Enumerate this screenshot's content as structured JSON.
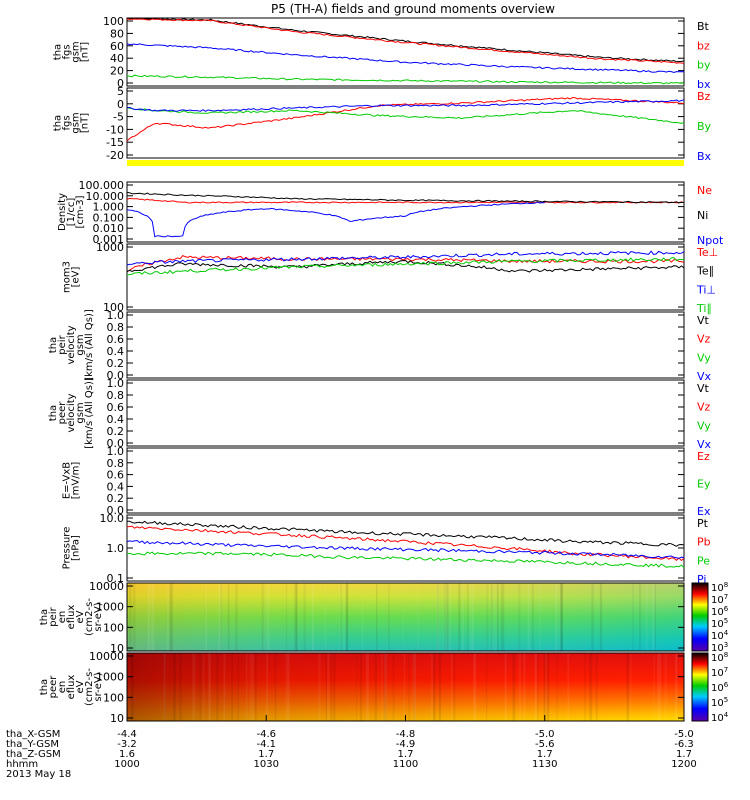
{
  "title": "P5 (TH-A) fields and ground moments overview",
  "chart_data": [
    {
      "type": "line",
      "ylabel": [
        "tha",
        "fgs",
        "gsm",
        "[nT]"
      ],
      "yticks": [
        "100",
        "80",
        "60",
        "40",
        "20",
        "0"
      ],
      "ylim": [
        0,
        100
      ],
      "series": [
        {
          "name": "Bt",
          "color": "#000000",
          "x": [
            0,
            0.15,
            0.3,
            0.5,
            0.7,
            0.85,
            1
          ],
          "values": [
            100,
            97,
            82,
            66,
            52,
            42,
            36
          ]
        },
        {
          "name": "bz",
          "color": "#ff0000",
          "x": [
            0,
            0.15,
            0.3,
            0.5,
            0.7,
            0.85,
            1
          ],
          "values": [
            99,
            96,
            80,
            64,
            50,
            40,
            34
          ]
        },
        {
          "name": "by",
          "color": "#00cc00",
          "x": [
            0,
            0.15,
            0.3,
            0.5,
            0.7,
            0.85,
            1
          ],
          "values": [
            15,
            13,
            10,
            8,
            6,
            5,
            4
          ]
        },
        {
          "name": "bx",
          "color": "#0000ff",
          "x": [
            0,
            0.15,
            0.3,
            0.5,
            0.7,
            0.85,
            1
          ],
          "values": [
            62,
            56,
            46,
            35,
            28,
            24,
            20
          ]
        }
      ]
    },
    {
      "type": "line",
      "ylabel": [
        "tha",
        "fgs",
        "gsm",
        "[nT]"
      ],
      "yticks": [
        "5",
        "0",
        "-5",
        "-10",
        "-15",
        "-20"
      ],
      "ylim": [
        -22,
        6
      ],
      "series": [
        {
          "name": "Bz",
          "color": "#ff0000",
          "x": [
            0,
            0.05,
            0.15,
            0.3,
            0.45,
            0.6,
            0.8,
            1
          ],
          "values": [
            -15,
            -8,
            -10,
            -6,
            -1,
            0,
            2,
            0
          ]
        },
        {
          "name": "By",
          "color": "#00cc00",
          "x": [
            0,
            0.05,
            0.15,
            0.3,
            0.45,
            0.6,
            0.8,
            1
          ],
          "values": [
            -2,
            -3,
            -4,
            -3,
            -5,
            -6,
            -3,
            -8
          ]
        },
        {
          "name": "Bx",
          "color": "#0000ff",
          "x": [
            0,
            0.05,
            0.15,
            0.3,
            0.45,
            0.6,
            0.8,
            1
          ],
          "values": [
            -2,
            -3,
            -3,
            -2,
            -1,
            -1,
            0,
            1
          ]
        }
      ]
    },
    {
      "type": "line",
      "ylabel": [
        "Density",
        "[1/cc]",
        "[cm-3]"
      ],
      "yticks": [
        "100.000",
        "10.000",
        "1.000",
        "0.100",
        "0.010",
        "0.001"
      ],
      "ylim": [
        0.001,
        100
      ],
      "log": true,
      "series": [
        {
          "name": "Ne",
          "color": "#ff0000",
          "x": [
            0,
            0.1,
            0.3,
            0.5,
            0.7,
            1
          ],
          "values": [
            4,
            2,
            2,
            2,
            2,
            2
          ]
        },
        {
          "name": "Ni",
          "color": "#000000",
          "x": [
            0,
            0.1,
            0.3,
            0.5,
            0.7,
            1
          ],
          "values": [
            12,
            8,
            4,
            3,
            2.5,
            2
          ]
        },
        {
          "name": "Npot",
          "color": "#0000ff",
          "x": [
            0,
            0.05,
            0.1,
            0.15,
            0.25,
            0.4,
            0.5,
            0.65,
            0.75
          ],
          "values": [
            0.5,
            0.003,
            0.003,
            0.2,
            0.6,
            0.05,
            0.15,
            1.2,
            2
          ]
        }
      ]
    },
    {
      "type": "line",
      "ylabel": [
        "mom3",
        "[eV]"
      ],
      "yticks": [
        "1000",
        "100"
      ],
      "ylim": [
        100,
        10000
      ],
      "log": true,
      "series": [
        {
          "name": "Te⊥",
          "color": "#ff0000",
          "x": [
            0,
            0.1,
            0.3,
            0.5,
            0.7,
            1
          ],
          "values": [
            1500,
            4000,
            3500,
            3500,
            3000,
            3000
          ]
        },
        {
          "name": "Te∥",
          "color": "#000000",
          "x": [
            0,
            0.1,
            0.3,
            0.5,
            0.7,
            1
          ],
          "values": [
            1500,
            2500,
            2000,
            3000,
            1500,
            2000
          ]
        },
        {
          "name": "Ti⊥",
          "color": "#0000ff",
          "x": [
            0,
            0.1,
            0.3,
            0.5,
            0.7,
            1
          ],
          "values": [
            2500,
            3000,
            3500,
            4000,
            5000,
            5500
          ]
        },
        {
          "name": "Ti∥",
          "color": "#00cc00",
          "x": [
            0,
            0.1,
            0.3,
            0.5,
            0.7,
            1
          ],
          "values": [
            1200,
            1500,
            2000,
            2500,
            3000,
            3500
          ]
        }
      ]
    },
    {
      "type": "line",
      "ylabel": [
        "tha",
        "peir",
        "velocity",
        "gsm",
        "[km/s (All Qs)]"
      ],
      "yticks": [
        "1.0",
        "0.8",
        "0.6",
        "0.4",
        "0.2",
        "0.0"
      ],
      "ylim": [
        0,
        1
      ],
      "series": [
        {
          "name": "Vt",
          "color": "#000000",
          "values": []
        },
        {
          "name": "Vz",
          "color": "#ff0000",
          "values": []
        },
        {
          "name": "Vy",
          "color": "#00cc00",
          "values": []
        },
        {
          "name": "Vx",
          "color": "#0000ff",
          "values": []
        }
      ]
    },
    {
      "type": "line",
      "ylabel": [
        "tha",
        "peer",
        "velocity",
        "gsm",
        "[km/s (All Qs)]"
      ],
      "yticks": [
        "1.0",
        "0.8",
        "0.6",
        "0.4",
        "0.2",
        "0.0"
      ],
      "ylim": [
        0,
        1
      ],
      "series": [
        {
          "name": "Vt",
          "color": "#000000",
          "values": []
        },
        {
          "name": "Vz",
          "color": "#ff0000",
          "values": []
        },
        {
          "name": "Vy",
          "color": "#00cc00",
          "values": []
        },
        {
          "name": "Vx",
          "color": "#0000ff",
          "values": []
        }
      ]
    },
    {
      "type": "line",
      "ylabel": [
        "E=-VxB",
        "[mV/m]"
      ],
      "yticks": [
        "1.0",
        "0.8",
        "0.6",
        "0.4",
        "0.2",
        "0.0"
      ],
      "ylim": [
        0,
        1
      ],
      "series": [
        {
          "name": "Ez",
          "color": "#ff0000",
          "values": []
        },
        {
          "name": "Ey",
          "color": "#00cc00",
          "values": []
        },
        {
          "name": "Ex",
          "color": "#0000ff",
          "values": []
        }
      ]
    },
    {
      "type": "line",
      "ylabel": [
        "Pressure",
        "[nPa]"
      ],
      "yticks": [
        "10.0",
        "1.0",
        "0.1"
      ],
      "ylim": [
        0.1,
        15
      ],
      "log": true,
      "series": [
        {
          "name": "Pt",
          "color": "#000000",
          "x": [
            0,
            0.2,
            0.4,
            0.6,
            0.8,
            1
          ],
          "values": [
            9,
            6,
            4,
            3,
            2,
            1.5
          ]
        },
        {
          "name": "Pb",
          "color": "#ff0000",
          "x": [
            0,
            0.2,
            0.4,
            0.6,
            0.8,
            1
          ],
          "values": [
            6,
            4,
            2.5,
            1.5,
            0.8,
            0.5
          ]
        },
        {
          "name": "Pe",
          "color": "#00cc00",
          "x": [
            0,
            0.2,
            0.4,
            0.6,
            0.8,
            1
          ],
          "values": [
            0.8,
            0.8,
            0.6,
            0.5,
            0.4,
            0.3
          ]
        },
        {
          "name": "Pi",
          "color": "#0000ff",
          "x": [
            0,
            0.2,
            0.4,
            0.6,
            0.8,
            1
          ],
          "values": [
            2,
            1.5,
            1.2,
            1,
            0.8,
            0.6
          ]
        }
      ]
    },
    {
      "type": "heatmap",
      "ylabel": [
        "tha",
        "peir",
        "en",
        "eflux",
        "eV",
        "(cm2-s-",
        "sr-eV)"
      ],
      "yticks": [
        "10000",
        "1000",
        "100",
        "10"
      ],
      "colorbar_ticks": [
        "10^8",
        "10^7",
        "10^6",
        "10^5",
        "10^4",
        "10^3"
      ]
    },
    {
      "type": "heatmap",
      "ylabel": [
        "tha",
        "peer",
        "en",
        "eflux",
        "eV",
        "(cm2-s-",
        "sr-eV)"
      ],
      "yticks": [
        "10000",
        "1000",
        "100",
        "10"
      ],
      "colorbar_ticks": [
        "10^8",
        "10^7",
        "10^6",
        "10^5",
        "10^4"
      ]
    }
  ],
  "x_axis": {
    "rows": [
      {
        "label": "tha_X-GSM",
        "values": [
          "-4.4",
          "-4.6",
          "-4.8",
          "-5.0",
          "-5.0"
        ]
      },
      {
        "label": "tha_Y-GSM",
        "values": [
          "-3.2",
          "-4.1",
          "-4.9",
          "-5.6",
          "-6.3"
        ]
      },
      {
        "label": "tha_Z-GSM",
        "values": [
          "1.6",
          "1.7",
          "1.7",
          "1.7",
          "1.7"
        ]
      },
      {
        "label": "hhmm",
        "values": [
          "1000",
          "1030",
          "1100",
          "1130",
          "1200"
        ]
      }
    ],
    "date": "2013 May 18"
  }
}
